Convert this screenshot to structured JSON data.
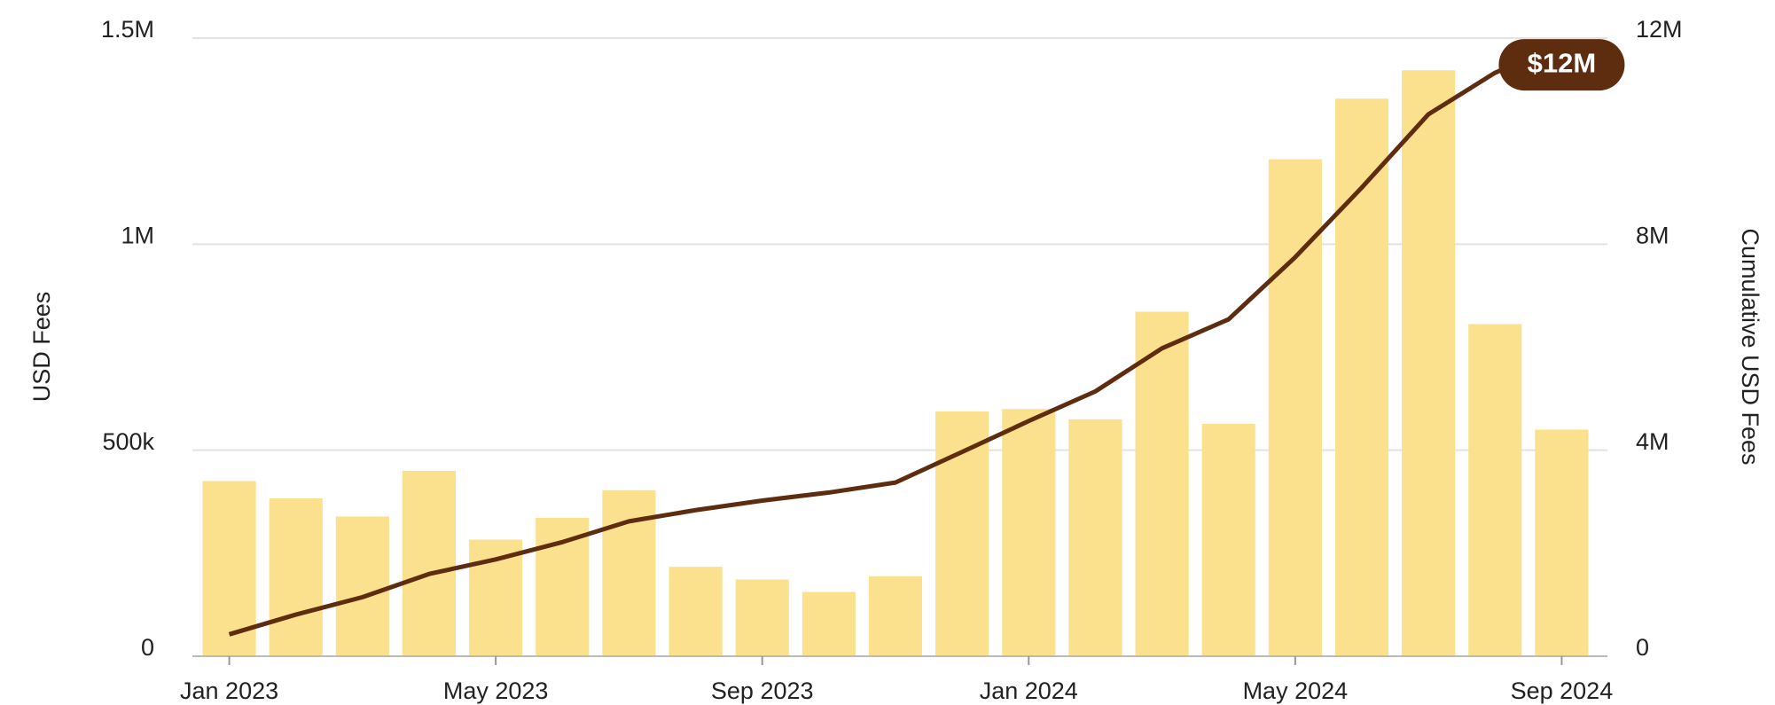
{
  "chart_data": {
    "type": "bar",
    "categories": [
      "Jan 2023",
      null,
      null,
      null,
      "May 2023",
      null,
      null,
      null,
      "Sep 2023",
      null,
      null,
      null,
      "Jan 2024",
      null,
      null,
      null,
      "May 2024",
      null,
      null,
      null,
      "Sep 2024"
    ],
    "ylabel": "USD Fees",
    "y2label": "Cumulative USD Fees",
    "ylim": [
      0,
      1500000
    ],
    "yticks": [
      0,
      {
        "value": 500000,
        "label": "500k"
      },
      {
        "value": 1000000,
        "label": "1M"
      },
      {
        "value": 1500000,
        "label": "1.5M"
      }
    ],
    "y2lim": [
      0,
      12000000
    ],
    "y2ticks": [
      0,
      {
        "value": 4000000,
        "label": "4M"
      },
      {
        "value": 8000000,
        "label": "8M"
      },
      {
        "value": 12000000,
        "label": "12M"
      }
    ],
    "grid": true,
    "series": [
      {
        "name": "USD Fees",
        "type": "bar",
        "color": "#fbe08d",
        "values": [
          425000,
          383000,
          339000,
          450000,
          283000,
          336000,
          403000,
          217000,
          186000,
          156000,
          194000,
          594000,
          600000,
          575000,
          836000,
          564000,
          1206000,
          1353000,
          1422000,
          806000,
          550000
        ]
      },
      {
        "name": "Cumulative USD Fees",
        "type": "line",
        "axis": "y2",
        "color": "#5e2c0f",
        "values": [
          425000,
          808000,
          1147000,
          1597000,
          1880000,
          2216000,
          2619000,
          2836000,
          3022000,
          3178000,
          3372000,
          3966000,
          4566000,
          5141000,
          5977000,
          6541000,
          7747000,
          9100000,
          10522000,
          11328000,
          11878000
        ],
        "value_labels": [
          null,
          null,
          null,
          null,
          null,
          null,
          null,
          null,
          null,
          null,
          null,
          null,
          null,
          null,
          null,
          null,
          null,
          null,
          null,
          null,
          "$12M"
        ]
      }
    ]
  }
}
